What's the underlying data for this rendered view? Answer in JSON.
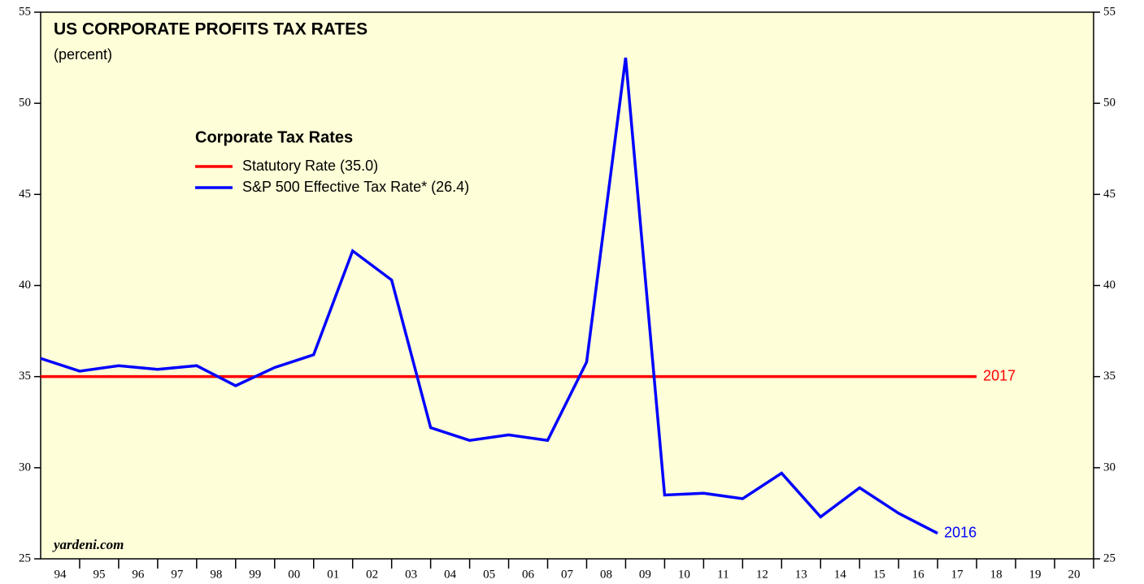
{
  "chart_data": {
    "type": "line",
    "title": "US CORPORATE PROFITS TAX RATES",
    "subtitle": "(percent)",
    "legend_title": "Corporate Tax Rates",
    "source": "yardeni.com",
    "xlim": [
      1993,
      2020
    ],
    "xticks": [
      {
        "value": 1994,
        "label": "94"
      },
      {
        "value": 1995,
        "label": "95"
      },
      {
        "value": 1996,
        "label": "96"
      },
      {
        "value": 1997,
        "label": "97"
      },
      {
        "value": 1998,
        "label": "98"
      },
      {
        "value": 1999,
        "label": "99"
      },
      {
        "value": 2000,
        "label": "00"
      },
      {
        "value": 2001,
        "label": "01"
      },
      {
        "value": 2002,
        "label": "02"
      },
      {
        "value": 2003,
        "label": "03"
      },
      {
        "value": 2004,
        "label": "04"
      },
      {
        "value": 2005,
        "label": "05"
      },
      {
        "value": 2006,
        "label": "06"
      },
      {
        "value": 2007,
        "label": "07"
      },
      {
        "value": 2008,
        "label": "08"
      },
      {
        "value": 2009,
        "label": "09"
      },
      {
        "value": 2010,
        "label": "10"
      },
      {
        "value": 2011,
        "label": "11"
      },
      {
        "value": 2012,
        "label": "12"
      },
      {
        "value": 2013,
        "label": "13"
      },
      {
        "value": 2014,
        "label": "14"
      },
      {
        "value": 2015,
        "label": "15"
      },
      {
        "value": 2016,
        "label": "16"
      },
      {
        "value": 2017,
        "label": "17"
      },
      {
        "value": 2018,
        "label": "18"
      },
      {
        "value": 2019,
        "label": "19"
      },
      {
        "value": 2020,
        "label": "20"
      }
    ],
    "ylim": [
      25,
      55
    ],
    "yticks": [
      25,
      30,
      35,
      40,
      45,
      50,
      55
    ],
    "series": [
      {
        "name": "Statutory Rate (35.0)",
        "color": "#ff0000",
        "end_label": "2017",
        "x": [
          1993,
          2017
        ],
        "values": [
          35,
          35
        ]
      },
      {
        "name": "S&P 500 Effective Tax Rate* (26.4)",
        "color": "#0000ff",
        "end_label": "2016",
        "x": [
          1993,
          1994,
          1995,
          1996,
          1997,
          1998,
          1999,
          2000,
          2001,
          2002,
          2003,
          2004,
          2005,
          2006,
          2007,
          2008,
          2009,
          2010,
          2011,
          2012,
          2013,
          2014,
          2015,
          2016
        ],
        "values": [
          36.0,
          35.3,
          35.6,
          35.4,
          35.6,
          34.5,
          35.5,
          36.2,
          41.9,
          40.3,
          32.2,
          31.5,
          31.8,
          31.5,
          35.8,
          52.5,
          28.5,
          28.6,
          28.3,
          29.7,
          27.3,
          28.9,
          27.5,
          26.4
        ]
      }
    ]
  }
}
